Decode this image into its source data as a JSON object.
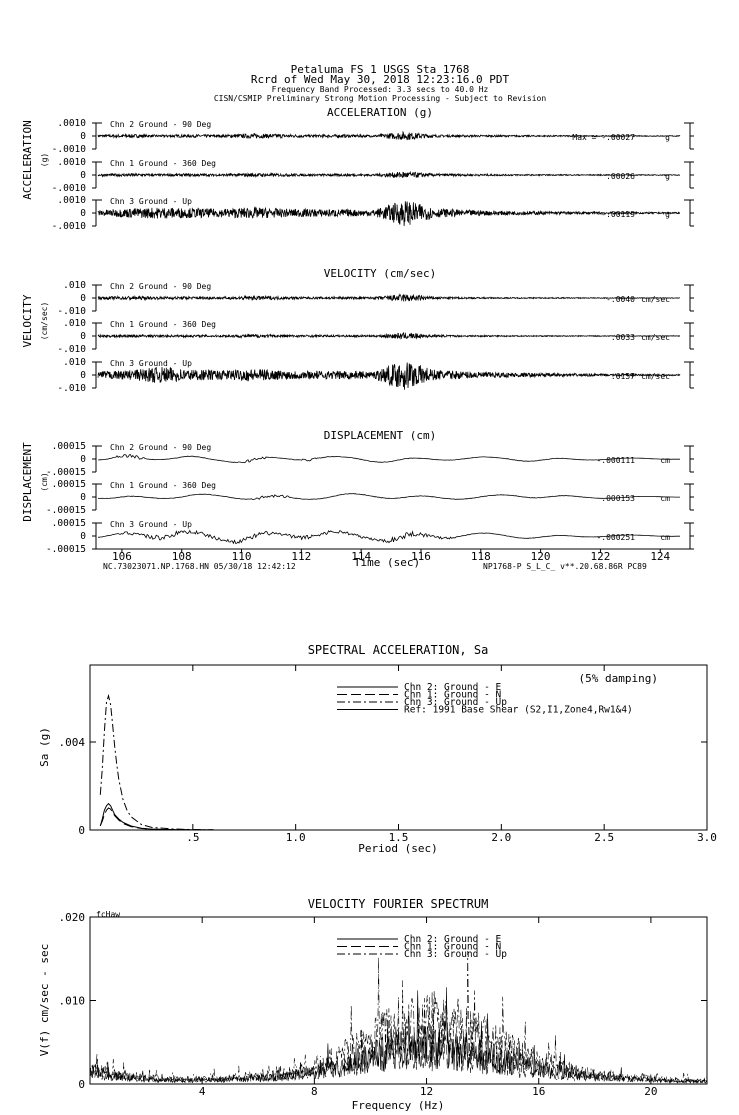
{
  "header": {
    "station": "Petaluma FS 1     USGS Sta 1768",
    "record": "Rcrd of Wed May 30, 2018 12:23:16.0 PDT",
    "band": "Frequency Band Processed: 3.3 secs to 40.0 Hz",
    "processing": "CISN/CSMIP Preliminary Strong Motion Processing - Subject to Revision"
  },
  "footer": {
    "file_id": "NC.73023071.NP.1768.HN 05/30/18 12:42:12",
    "proc_id": "NP1768-P  S_L_C_  v**.20.68.86R PC89"
  },
  "chart_data": [
    {
      "type": "line",
      "title": "ACCELERATION (g)",
      "ylabel": "ACCELERATION",
      "yunit": "(g)",
      "xlim": [
        105,
        125
      ],
      "traces": [
        {
          "label": "Chn 2  Ground - 90 Deg",
          "max_prefix": "Max =  ",
          "max": "-.00027",
          "unit": "g",
          "ticks": [
            ".0010",
            "0",
            "-.0010"
          ],
          "envelope": [
            0.12,
            0.18,
            0.1,
            0.15,
            0.12,
            0.22,
            0.18,
            0.12,
            0.15,
            0.1,
            0.42,
            0.12,
            0.1,
            0.08,
            0.07,
            0.06,
            0.05,
            0.05,
            0.04,
            0.04
          ]
        },
        {
          "label": "Chn 1  Ground - 360 Deg",
          "max_prefix": "",
          "max": ".00026",
          "unit": "g",
          "ticks": [
            ".0010",
            "0",
            "-.0010"
          ],
          "envelope": [
            0.1,
            0.15,
            0.1,
            0.14,
            0.1,
            0.18,
            0.14,
            0.1,
            0.12,
            0.1,
            0.35,
            0.12,
            0.1,
            0.08,
            0.06,
            0.05,
            0.05,
            0.04,
            0.04,
            0.04
          ]
        },
        {
          "label": "Chn 3  Ground - Up",
          "max_prefix": "",
          "max": "-.00119",
          "unit": "g",
          "ticks": [
            ".0010",
            "0",
            "-.0010"
          ],
          "envelope": [
            0.28,
            0.45,
            0.55,
            0.48,
            0.4,
            0.55,
            0.42,
            0.38,
            0.36,
            0.3,
            1.3,
            0.45,
            0.3,
            0.22,
            0.18,
            0.14,
            0.12,
            0.1,
            0.08,
            0.07
          ]
        }
      ]
    },
    {
      "type": "line",
      "title": "VELOCITY (cm/sec)",
      "ylabel": "VELOCITY",
      "yunit": "(cm/sec)",
      "xlim": [
        105,
        125
      ],
      "traces": [
        {
          "label": "Chn 2  Ground - 90 Deg",
          "max_prefix": "",
          "max": "-.0040",
          "unit": "cm/sec",
          "ticks": [
            ".010",
            "0",
            "-.010"
          ],
          "envelope": [
            0.12,
            0.18,
            0.12,
            0.15,
            0.1,
            0.22,
            0.14,
            0.1,
            0.12,
            0.1,
            0.4,
            0.12,
            0.08,
            0.06,
            0.05,
            0.05,
            0.04,
            0.04,
            0.03,
            0.03
          ]
        },
        {
          "label": "Chn 1  Ground - 360 Deg",
          "max_prefix": "",
          "max": ".0033",
          "unit": "cm/sec",
          "ticks": [
            ".010",
            "0",
            "-.010"
          ],
          "envelope": [
            0.1,
            0.15,
            0.1,
            0.12,
            0.1,
            0.18,
            0.12,
            0.1,
            0.1,
            0.08,
            0.32,
            0.1,
            0.08,
            0.06,
            0.05,
            0.04,
            0.04,
            0.03,
            0.03,
            0.03
          ]
        },
        {
          "label": "Chn 3  Ground - Up",
          "max_prefix": "",
          "max": ".0157",
          "unit": "cm/sec",
          "ticks": [
            ".010",
            "0",
            "-.010"
          ],
          "envelope": [
            0.35,
            0.45,
            0.8,
            0.55,
            0.45,
            0.6,
            0.45,
            0.4,
            0.4,
            0.35,
            1.5,
            0.5,
            0.35,
            0.25,
            0.2,
            0.15,
            0.12,
            0.1,
            0.08,
            0.07
          ]
        }
      ]
    },
    {
      "type": "line",
      "title": "DISPLACEMENT (cm)",
      "ylabel": "DISPLACEMENT",
      "yunit": "(cm)",
      "xlabel": "Time (sec)",
      "xlim": [
        105,
        125
      ],
      "xticks": [
        106,
        108,
        110,
        112,
        114,
        116,
        118,
        120,
        122,
        124
      ],
      "traces": [
        {
          "label": "Chn 2  Ground - 90 Deg",
          "max_prefix": "",
          "max": "-.000111",
          "unit": "cm",
          "ticks": [
            ".00015",
            "0",
            "-.00015"
          ],
          "envelope": [
            0.2,
            0.7,
            0.3,
            0.5,
            0.3,
            0.6,
            0.4,
            0.55,
            0.3,
            0.45,
            0.5,
            0.35,
            0.3,
            0.25,
            0.4,
            0.45,
            0.2,
            0.15,
            0.1,
            0.05
          ]
        },
        {
          "label": "Chn 1  Ground - 360 Deg",
          "max_prefix": "",
          "max": ".000153",
          "unit": "cm",
          "ticks": [
            ".00015",
            "0",
            "-.00015"
          ],
          "envelope": [
            0.2,
            0.5,
            0.3,
            0.4,
            0.3,
            0.5,
            0.55,
            0.35,
            0.45,
            0.4,
            0.5,
            0.35,
            0.3,
            0.3,
            0.45,
            0.4,
            0.2,
            0.15,
            0.1,
            0.05
          ]
        },
        {
          "label": "Chn 3  Ground - Up",
          "max_prefix": "",
          "max": "-.000251",
          "unit": "cm",
          "ticks": [
            ".00015",
            "0",
            "-.00015"
          ],
          "envelope": [
            0.3,
            0.6,
            1.1,
            0.8,
            0.6,
            0.9,
            0.7,
            0.8,
            0.6,
            0.5,
            1.2,
            0.6,
            0.45,
            0.35,
            0.4,
            0.35,
            0.2,
            0.15,
            0.1,
            0.05
          ]
        }
      ]
    },
    {
      "type": "line",
      "title": "SPECTRAL ACCELERATION, Sa",
      "xlabel": "Period (sec)",
      "ylabel": "Sa (g)",
      "xlim": [
        0,
        3.0
      ],
      "ylim": [
        0,
        0.0075
      ],
      "xticks": [
        ".5",
        "1.0",
        "1.5",
        "2.0",
        "2.5",
        "3.0"
      ],
      "yticks": [
        {
          "v": 0.004,
          "label": ".004"
        },
        {
          "v": 0,
          "label": "0"
        }
      ],
      "annotation": "(5% damping)",
      "legend": [
        "Chn 2: Ground - E",
        "Chn 1: Ground - N",
        "Chn 3: Ground - Up",
        "Ref: 1991 Base Shear (S2,I1,Zone4,Rw1&4)"
      ],
      "series": [
        {
          "name": "Chn 2: Ground - E",
          "x": [
            0.05,
            0.06,
            0.07,
            0.08,
            0.09,
            0.1,
            0.11,
            0.12,
            0.14,
            0.16,
            0.2,
            0.25,
            0.3,
            0.4,
            0.5,
            0.6
          ],
          "y": [
            0.00018,
            0.0005,
            0.0009,
            0.0011,
            0.0012,
            0.0011,
            0.0009,
            0.0007,
            0.0005,
            0.00035,
            0.00018,
            8e-05,
            4e-05,
            2e-05,
            1e-05,
            5e-06
          ]
        },
        {
          "name": "Chn 1: Ground - N",
          "x": [
            0.05,
            0.06,
            0.07,
            0.08,
            0.09,
            0.1,
            0.11,
            0.12,
            0.14,
            0.16,
            0.2,
            0.25,
            0.3,
            0.4,
            0.5,
            0.6
          ],
          "y": [
            0.0002,
            0.0004,
            0.0007,
            0.0009,
            0.001,
            0.00095,
            0.0008,
            0.00065,
            0.00045,
            0.0003,
            0.00015,
            7e-05,
            4e-05,
            2e-05,
            1e-05,
            5e-06
          ]
        },
        {
          "name": "Chn 3: Ground - Up",
          "x": [
            0.05,
            0.06,
            0.07,
            0.08,
            0.09,
            0.1,
            0.11,
            0.12,
            0.13,
            0.14,
            0.16,
            0.18,
            0.2,
            0.25,
            0.3,
            0.4,
            0.5,
            0.6
          ],
          "y": [
            0.0016,
            0.0028,
            0.0045,
            0.0058,
            0.0061,
            0.0057,
            0.0048,
            0.0038,
            0.003,
            0.0023,
            0.0014,
            0.0009,
            0.0006,
            0.00025,
            0.00012,
            5e-05,
            2e-05,
            1e-05
          ]
        }
      ]
    },
    {
      "type": "line",
      "title": "VELOCITY FOURIER SPECTRUM",
      "xlabel": "Frequency (Hz)",
      "ylabel": "V(f)   cm/sec - sec",
      "corner_label": "fcHaw",
      "xlim": [
        0,
        22
      ],
      "ylim": [
        0,
        0.02
      ],
      "xticks": [
        4,
        8,
        12,
        16,
        20
      ],
      "yticks": [
        {
          "v": 0.02,
          "label": ".020"
        },
        {
          "v": 0.01,
          "label": ".010"
        },
        {
          "v": 0,
          "label": "0"
        }
      ],
      "legend": [
        "Chn 2: Ground - E",
        "Chn 1: Ground - N",
        "Chn 3: Ground - Up"
      ],
      "series": [
        {
          "name": "Chn 2: Ground - E",
          "x": [
            0,
            1,
            2,
            3,
            4,
            5,
            6,
            7,
            8,
            9,
            10,
            11,
            12,
            13,
            14,
            15,
            16,
            17,
            18,
            19,
            20,
            21,
            22
          ],
          "y": [
            0.0015,
            0.0009,
            0.0006,
            0.0005,
            0.0005,
            0.0006,
            0.0007,
            0.0009,
            0.0014,
            0.0022,
            0.0032,
            0.0042,
            0.0045,
            0.004,
            0.0032,
            0.0025,
            0.0018,
            0.0013,
            0.0009,
            0.0007,
            0.0005,
            0.0004,
            0.0003
          ]
        },
        {
          "name": "Chn 1: Ground - N",
          "x": [
            0,
            1,
            2,
            3,
            4,
            5,
            6,
            7,
            8,
            9,
            10,
            11,
            12,
            13,
            14,
            15,
            16,
            17,
            18,
            19,
            20,
            21,
            22
          ],
          "y": [
            0.0012,
            0.0008,
            0.0005,
            0.0004,
            0.0004,
            0.0005,
            0.0006,
            0.0008,
            0.0012,
            0.002,
            0.0028,
            0.0035,
            0.0038,
            0.0034,
            0.0027,
            0.002,
            0.0015,
            0.001,
            0.0008,
            0.0006,
            0.0004,
            0.0003,
            0.0003
          ]
        },
        {
          "name": "Chn 3: Ground - Up",
          "x": [
            0,
            1,
            2,
            3,
            4,
            5,
            6,
            7,
            8,
            9,
            10,
            11,
            12,
            13,
            14,
            15,
            16,
            17,
            18,
            19,
            20,
            21,
            22
          ],
          "y": [
            0.0018,
            0.001,
            0.0007,
            0.0006,
            0.0006,
            0.0007,
            0.0009,
            0.0013,
            0.002,
            0.0032,
            0.0048,
            0.0065,
            0.0072,
            0.0068,
            0.0052,
            0.0038,
            0.0026,
            0.0018,
            0.0012,
            0.0009,
            0.0007,
            0.0005,
            0.0004
          ]
        }
      ]
    }
  ]
}
